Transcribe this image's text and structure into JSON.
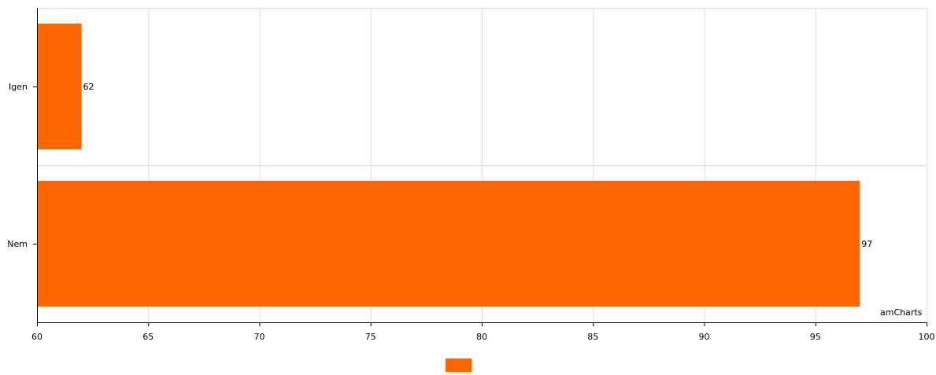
{
  "chart_data": {
    "type": "bar",
    "orientation": "horizontal",
    "categories": [
      "Igen",
      "Nem"
    ],
    "series": [
      {
        "values": [
          62,
          97
        ],
        "color": "#ff6600"
      }
    ],
    "data_labels": [
      "62",
      "97"
    ],
    "xlim": [
      60,
      100
    ],
    "x_ticks": [
      60,
      65,
      70,
      75,
      80,
      85,
      90,
      95,
      100
    ],
    "x_tick_labels": [
      "60",
      "65",
      "70",
      "75",
      "80",
      "85",
      "90",
      "95",
      "100"
    ],
    "title": "",
    "xlabel": "",
    "ylabel": "",
    "grid": true,
    "legend": {
      "placement": "bottom-center",
      "entries": [
        {
          "color": "#ff6600"
        }
      ]
    }
  },
  "credit": {
    "text": "amCharts"
  }
}
